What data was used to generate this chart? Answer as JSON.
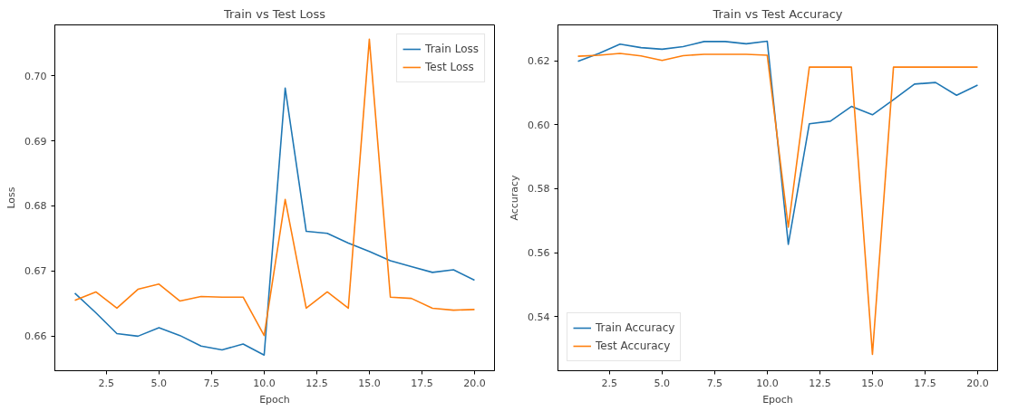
{
  "chart_data": [
    {
      "type": "line",
      "title": "Train vs Test Loss",
      "xlabel": "Epoch",
      "ylabel": "Loss",
      "x": [
        1,
        2,
        3,
        4,
        5,
        6,
        7,
        8,
        9,
        10,
        11,
        12,
        13,
        14,
        15,
        16,
        17,
        18,
        19,
        20
      ],
      "series": [
        {
          "name": "Train Loss",
          "color": "#1f77b4",
          "values": [
            0.6666,
            0.6636,
            0.6604,
            0.66,
            0.6613,
            0.6601,
            0.6585,
            0.6579,
            0.6588,
            0.6571,
            0.6981,
            0.6761,
            0.6758,
            0.6743,
            0.673,
            0.6716,
            0.6707,
            0.6698,
            0.6702,
            0.6686
          ]
        },
        {
          "name": "Test Loss",
          "color": "#ff7f0e",
          "values": [
            0.6655,
            0.6668,
            0.6643,
            0.6672,
            0.668,
            0.6654,
            0.6661,
            0.666,
            0.666,
            0.6601,
            0.681,
            0.6643,
            0.6668,
            0.6643,
            0.7056,
            0.666,
            0.6658,
            0.6643,
            0.664,
            0.6641
          ]
        }
      ],
      "xlim": [
        0.05,
        20.95
      ],
      "xticks": [
        {
          "value": 2.5,
          "label": "2.5"
        },
        {
          "value": 5,
          "label": "5.0"
        },
        {
          "value": 7.5,
          "label": "7.5"
        },
        {
          "value": 10,
          "label": "10.0"
        },
        {
          "value": 12.5,
          "label": "12.5"
        },
        {
          "value": 15,
          "label": "15.0"
        },
        {
          "value": 17.5,
          "label": "17.5"
        },
        {
          "value": 20,
          "label": "20.0"
        }
      ],
      "ylim": [
        0.6547,
        0.7078
      ],
      "yticks": [
        {
          "value": 0.66,
          "label": "0.66"
        },
        {
          "value": 0.67,
          "label": "0.67"
        },
        {
          "value": 0.68,
          "label": "0.68"
        },
        {
          "value": 0.69,
          "label": "0.69"
        },
        {
          "value": 0.7,
          "label": "0.70"
        }
      ],
      "legend": "top right",
      "grid": false
    },
    {
      "type": "line",
      "title": "Train vs Test Accuracy",
      "xlabel": "Epoch",
      "ylabel": "Accuracy",
      "x": [
        1,
        2,
        3,
        4,
        5,
        6,
        7,
        8,
        9,
        10,
        11,
        12,
        13,
        14,
        15,
        16,
        17,
        18,
        19,
        20
      ],
      "series": [
        {
          "name": "Train Accuracy",
          "color": "#1f77b4",
          "values": [
            0.6198,
            0.6223,
            0.6252,
            0.6241,
            0.6236,
            0.6244,
            0.626,
            0.626,
            0.6253,
            0.6261,
            0.5626,
            0.6003,
            0.6011,
            0.6057,
            0.6031,
            0.6078,
            0.6127,
            0.6132,
            0.6092,
            0.6124
          ]
        },
        {
          "name": "Test Accuracy",
          "color": "#ff7f0e",
          "values": [
            0.6214,
            0.6217,
            0.6223,
            0.6215,
            0.6201,
            0.6216,
            0.622,
            0.622,
            0.622,
            0.6217,
            0.568,
            0.618,
            0.618,
            0.618,
            0.5282,
            0.618,
            0.618,
            0.618,
            0.618,
            0.618
          ]
        }
      ],
      "xlim": [
        0.05,
        20.95
      ],
      "xticks": [
        {
          "value": 2.5,
          "label": "2.5"
        },
        {
          "value": 5,
          "label": "5.0"
        },
        {
          "value": 7.5,
          "label": "7.5"
        },
        {
          "value": 10,
          "label": "10.0"
        },
        {
          "value": 12.5,
          "label": "12.5"
        },
        {
          "value": 15,
          "label": "15.0"
        },
        {
          "value": 17.5,
          "label": "17.5"
        },
        {
          "value": 20,
          "label": "20.0"
        }
      ],
      "ylim": [
        0.5231,
        0.6312
      ],
      "yticks": [
        {
          "value": 0.54,
          "label": "0.54"
        },
        {
          "value": 0.56,
          "label": "0.56"
        },
        {
          "value": 0.58,
          "label": "0.58"
        },
        {
          "value": 0.6,
          "label": "0.60"
        },
        {
          "value": 0.62,
          "label": "0.62"
        }
      ],
      "legend": "bottom left",
      "grid": false
    }
  ]
}
